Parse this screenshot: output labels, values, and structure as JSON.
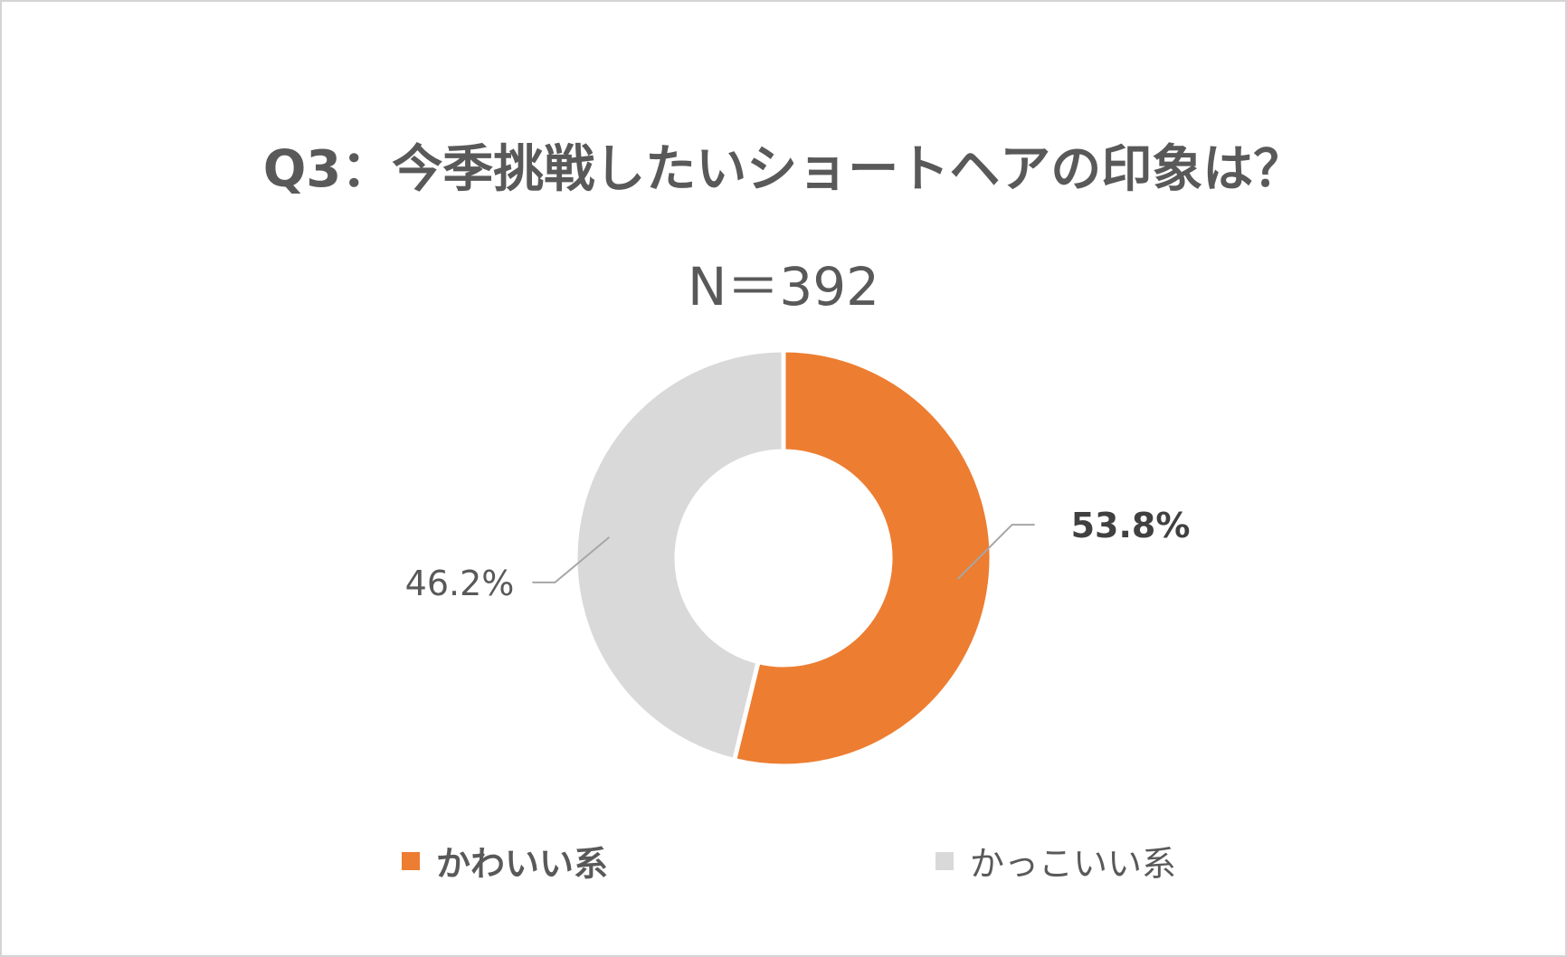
{
  "chart_data": {
    "type": "pie",
    "variant": "donut",
    "title": "Q3：今季挑戦したいショートヘアの印象は？",
    "subtitle": "N＝392",
    "slices": [
      {
        "label": "かわいい系",
        "value": 53.8,
        "value_label": "53.8%",
        "color": "#ED7D31",
        "emphasis": true
      },
      {
        "label": "かっこいい系",
        "value": 46.2,
        "value_label": "46.2%",
        "color": "#D9D9D9",
        "emphasis": false
      }
    ],
    "legend_position": "bottom",
    "start_angle": "top, clockwise"
  }
}
